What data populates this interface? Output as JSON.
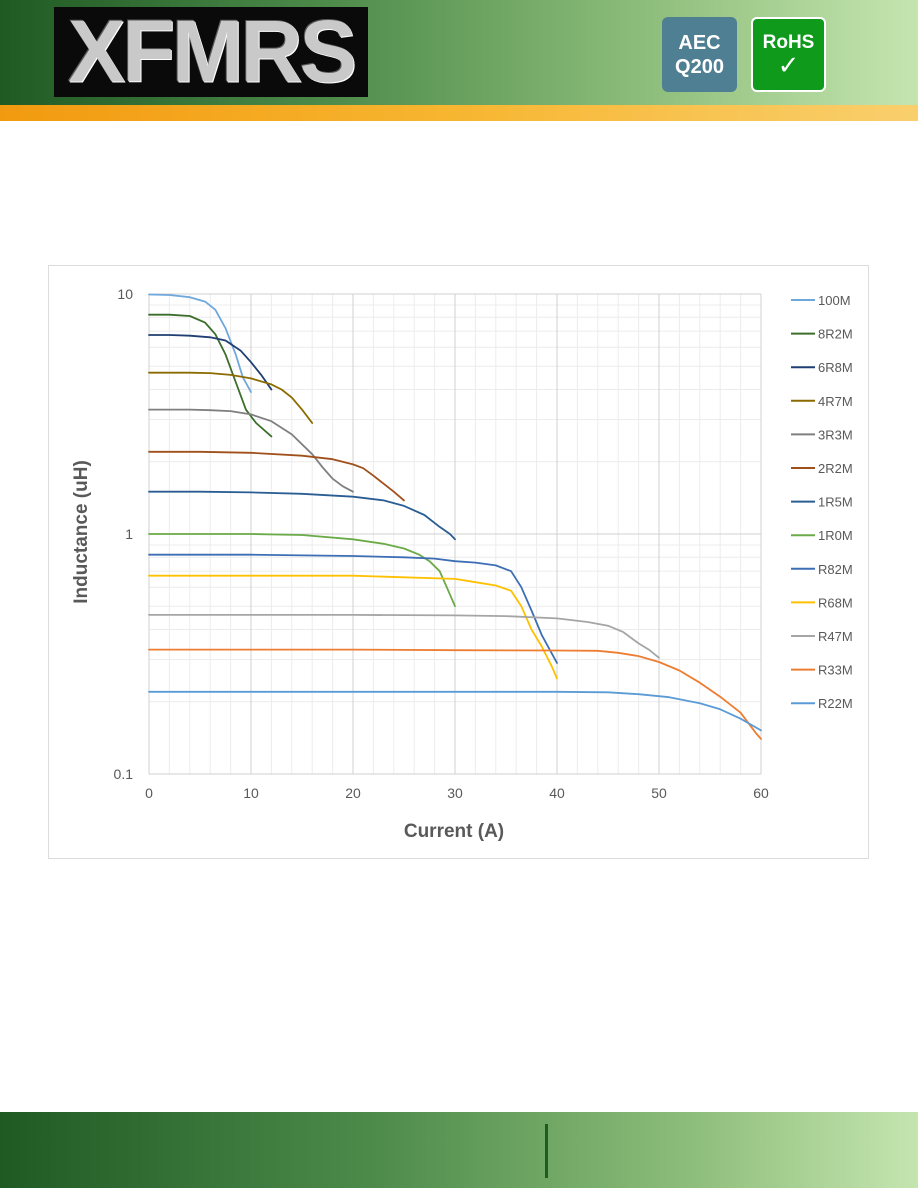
{
  "header": {
    "logo_text": "XFMRS",
    "badge_aec_line1": "AEC",
    "badge_aec_line2": "Q200",
    "badge_rohs_line1": "RoHS",
    "badge_rohs_check": "✓"
  },
  "colors": {
    "header_green_dark": "#1f5a23",
    "header_green_light": "#c5e5b0",
    "stripe_orange": "#f29a0f",
    "aec_blue": "#4f7f93",
    "rohs_green": "#0f9a1c"
  },
  "chart_data": {
    "type": "line",
    "title": "",
    "xlabel": "Current (A)",
    "ylabel": "Inductance (uH)",
    "xlim": [
      0,
      60
    ],
    "ylim": [
      0.1,
      10
    ],
    "y_scale": "log",
    "x_ticks": [
      "0",
      "10",
      "20",
      "30",
      "40",
      "50",
      "60"
    ],
    "y_ticks": [
      "0.1",
      "1",
      "10"
    ],
    "grid": true,
    "legend": "right",
    "series": [
      {
        "name": "100M",
        "color": "#6fa8dc",
        "points": [
          [
            0,
            9.95
          ],
          [
            2,
            9.9
          ],
          [
            4,
            9.7
          ],
          [
            5.5,
            9.3
          ],
          [
            6.5,
            8.6
          ],
          [
            7.5,
            7.2
          ],
          [
            8.5,
            5.6
          ],
          [
            9.2,
            4.5
          ],
          [
            10,
            3.9
          ]
        ]
      },
      {
        "name": "8R2M",
        "color": "#3a6e2a",
        "points": [
          [
            0,
            8.2
          ],
          [
            2,
            8.2
          ],
          [
            4,
            8.1
          ],
          [
            5.5,
            7.6
          ],
          [
            6.5,
            6.8
          ],
          [
            7.5,
            5.6
          ],
          [
            8.5,
            4.3
          ],
          [
            9.5,
            3.3
          ],
          [
            10.5,
            2.9
          ],
          [
            12,
            2.55
          ]
        ]
      },
      {
        "name": "6R8M",
        "color": "#1f3e72",
        "points": [
          [
            0,
            6.75
          ],
          [
            2,
            6.75
          ],
          [
            4,
            6.7
          ],
          [
            6,
            6.6
          ],
          [
            7.5,
            6.4
          ],
          [
            9,
            5.8
          ],
          [
            10,
            5.2
          ],
          [
            11,
            4.6
          ],
          [
            12,
            4.0
          ]
        ]
      },
      {
        "name": "4R7M",
        "color": "#8b6b00",
        "points": [
          [
            0,
            4.7
          ],
          [
            4,
            4.7
          ],
          [
            6,
            4.68
          ],
          [
            8,
            4.6
          ],
          [
            10,
            4.45
          ],
          [
            12,
            4.2
          ],
          [
            13,
            4.0
          ],
          [
            14,
            3.7
          ],
          [
            15,
            3.3
          ],
          [
            16,
            2.9
          ]
        ]
      },
      {
        "name": "3R3M",
        "color": "#7f7f7f",
        "points": [
          [
            0,
            3.3
          ],
          [
            4,
            3.3
          ],
          [
            6,
            3.28
          ],
          [
            8,
            3.25
          ],
          [
            10,
            3.15
          ],
          [
            12,
            2.95
          ],
          [
            14,
            2.6
          ],
          [
            16,
            2.15
          ],
          [
            17,
            1.9
          ],
          [
            18,
            1.7
          ],
          [
            19,
            1.58
          ],
          [
            20,
            1.5
          ]
        ]
      },
      {
        "name": "2R2M",
        "color": "#a0501b",
        "points": [
          [
            0,
            2.2
          ],
          [
            5,
            2.2
          ],
          [
            10,
            2.18
          ],
          [
            15,
            2.12
          ],
          [
            18,
            2.05
          ],
          [
            20,
            1.95
          ],
          [
            21,
            1.88
          ],
          [
            22,
            1.75
          ],
          [
            23,
            1.62
          ],
          [
            24,
            1.5
          ],
          [
            25,
            1.38
          ]
        ]
      },
      {
        "name": "1R5M",
        "color": "#2a5d93",
        "points": [
          [
            0,
            1.5
          ],
          [
            5,
            1.5
          ],
          [
            10,
            1.49
          ],
          [
            15,
            1.47
          ],
          [
            20,
            1.43
          ],
          [
            23,
            1.38
          ],
          [
            25,
            1.31
          ],
          [
            27,
            1.2
          ],
          [
            28.5,
            1.07
          ],
          [
            29.5,
            1.0
          ],
          [
            30,
            0.95
          ]
        ]
      },
      {
        "name": "1R0M",
        "color": "#6aaa48",
        "points": [
          [
            0,
            1.0
          ],
          [
            5,
            1.0
          ],
          [
            10,
            1.0
          ],
          [
            15,
            0.99
          ],
          [
            20,
            0.95
          ],
          [
            23,
            0.91
          ],
          [
            25,
            0.87
          ],
          [
            26.5,
            0.82
          ],
          [
            27.5,
            0.77
          ],
          [
            28.5,
            0.7
          ],
          [
            29.2,
            0.6
          ],
          [
            30,
            0.5
          ]
        ]
      },
      {
        "name": "R82M",
        "color": "#3d6eb5",
        "points": [
          [
            0,
            0.82
          ],
          [
            10,
            0.82
          ],
          [
            20,
            0.81
          ],
          [
            25,
            0.8
          ],
          [
            28,
            0.79
          ],
          [
            30,
            0.77
          ],
          [
            32,
            0.76
          ],
          [
            34,
            0.74
          ],
          [
            35.5,
            0.7
          ],
          [
            36.5,
            0.6
          ],
          [
            37.5,
            0.48
          ],
          [
            38.5,
            0.38
          ],
          [
            40,
            0.29
          ]
        ]
      },
      {
        "name": "R68M",
        "color": "#ffc000",
        "points": [
          [
            0,
            0.67
          ],
          [
            10,
            0.67
          ],
          [
            20,
            0.67
          ],
          [
            25,
            0.66
          ],
          [
            30,
            0.65
          ],
          [
            32,
            0.63
          ],
          [
            34,
            0.61
          ],
          [
            35.5,
            0.58
          ],
          [
            36.5,
            0.5
          ],
          [
            37.5,
            0.4
          ],
          [
            38.5,
            0.34
          ],
          [
            39.5,
            0.28
          ],
          [
            40,
            0.25
          ]
        ]
      },
      {
        "name": "R47M",
        "color": "#a5a5a5",
        "points": [
          [
            0,
            0.46
          ],
          [
            10,
            0.46
          ],
          [
            20,
            0.46
          ],
          [
            30,
            0.458
          ],
          [
            35,
            0.455
          ],
          [
            40,
            0.445
          ],
          [
            43,
            0.43
          ],
          [
            45,
            0.415
          ],
          [
            46.5,
            0.39
          ],
          [
            48,
            0.35
          ],
          [
            49,
            0.33
          ],
          [
            50,
            0.305
          ]
        ]
      },
      {
        "name": "R33M",
        "color": "#ed7d31",
        "points": [
          [
            0,
            0.33
          ],
          [
            10,
            0.33
          ],
          [
            20,
            0.33
          ],
          [
            30,
            0.328
          ],
          [
            40,
            0.327
          ],
          [
            44,
            0.326
          ],
          [
            46,
            0.32
          ],
          [
            48,
            0.31
          ],
          [
            50,
            0.293
          ],
          [
            52,
            0.27
          ],
          [
            54,
            0.24
          ],
          [
            56,
            0.21
          ],
          [
            58,
            0.18
          ],
          [
            59.5,
            0.148
          ],
          [
            60,
            0.14
          ]
        ]
      },
      {
        "name": "R22M",
        "color": "#5b9bd5",
        "points": [
          [
            0,
            0.22
          ],
          [
            10,
            0.22
          ],
          [
            20,
            0.22
          ],
          [
            30,
            0.22
          ],
          [
            40,
            0.22
          ],
          [
            45,
            0.219
          ],
          [
            48,
            0.215
          ],
          [
            51,
            0.209
          ],
          [
            54,
            0.197
          ],
          [
            56,
            0.186
          ],
          [
            58,
            0.17
          ],
          [
            60,
            0.152
          ]
        ]
      }
    ]
  }
}
